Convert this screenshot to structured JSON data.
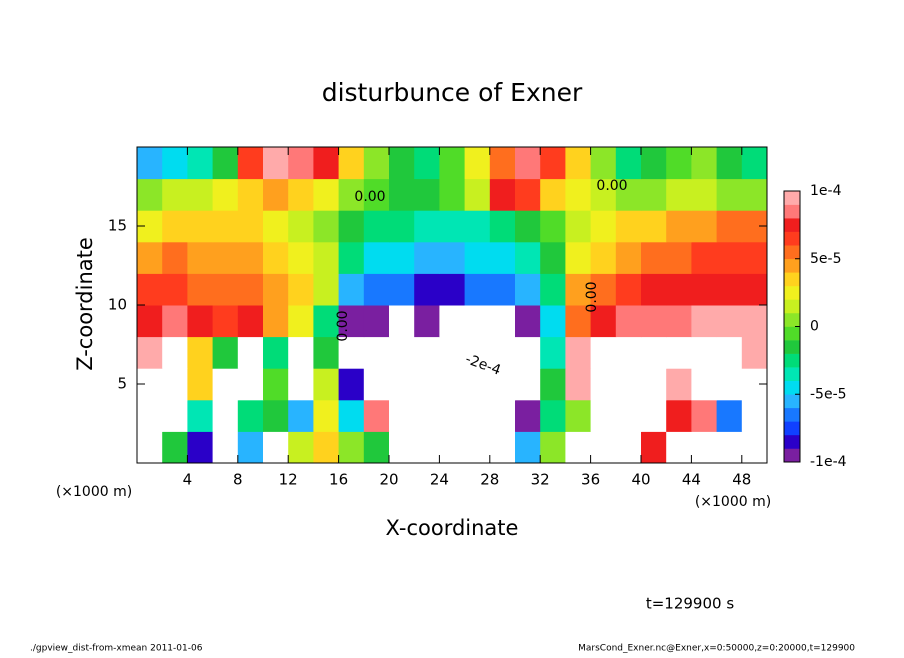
{
  "chart_data": {
    "type": "contourf",
    "title": "disturbunce of Exner",
    "xlabel": "X-coordinate",
    "ylabel": "Z-coordinate",
    "x_unit": "(×1000 m)",
    "y_unit": "(×1000 m)",
    "time_label": "t=129900 s",
    "footer_left": "./gpview_dist-from-xmean  2011-01-06",
    "footer_right": "MarsCond_Exner.nc@Exner,x=0:50000,z=0:20000,t=129900",
    "xlim": [
      0,
      50
    ],
    "ylim": [
      0,
      20
    ],
    "xticks": [
      4,
      8,
      12,
      16,
      20,
      24,
      28,
      32,
      36,
      40,
      44,
      48
    ],
    "yticks": [
      5,
      10,
      15
    ],
    "x": [
      1,
      3,
      5,
      7,
      9,
      11,
      13,
      15,
      17,
      19,
      21,
      23,
      25,
      27,
      29,
      31,
      33,
      35,
      37,
      39,
      41,
      43,
      45,
      47,
      49
    ],
    "y": [
      1,
      3,
      5,
      7,
      9,
      11,
      13,
      15,
      17,
      19
    ],
    "z": [
      [
        0.00012,
        -2e-05,
        -8e-05,
        0.00012,
        -6e-05,
        0.00012,
        1e-05,
        3e-05,
        0,
        -2e-05,
        -0.00015,
        -0.00015,
        -0.0002,
        -0.00015,
        -0.00012,
        -6e-05,
        0,
        0.00012,
        0.00012,
        0.00012,
        7e-05,
        0.00012,
        0.00012,
        0.00012,
        0.00012
      ],
      [
        0.00012,
        0.00012,
        -4e-05,
        0.00012,
        -3e-05,
        -2e-05,
        -6e-05,
        2e-05,
        -5e-05,
        8e-05,
        -0.0002,
        -0.0002,
        -0.00025,
        -0.00025,
        -0.0002,
        -0.0001,
        -3e-05,
        0,
        0.00012,
        0.00012,
        0.00012,
        7e-05,
        8e-05,
        -7e-05,
        0.00012
      ],
      [
        0.00012,
        0.00012,
        3e-05,
        0.00012,
        0.00012,
        -1e-05,
        0.00012,
        1e-05,
        -8e-05,
        -0.0002,
        -0.0002,
        -0.0002,
        -0.0002,
        -0.00025,
        -0.00025,
        -0.0002,
        -2e-05,
        0.0001,
        0.00012,
        0.00012,
        0.00012,
        9e-05,
        0.00012,
        0.00012,
        0.00012
      ],
      [
        9e-05,
        0.00012,
        3e-05,
        -2e-05,
        0.00012,
        -3e-05,
        0.00012,
        -2e-05,
        -0.00015,
        -0.00015,
        -0.0002,
        -0.0002,
        -0.0002,
        -0.0002,
        -0.00015,
        -0.00012,
        -4e-05,
        9e-05,
        0.00012,
        0.00012,
        0.00012,
        0.00012,
        0.00012,
        0.00012,
        9e-05
      ],
      [
        7e-05,
        8e-05,
        7e-05,
        6e-05,
        7e-05,
        4e-05,
        2e-05,
        -3e-05,
        -9e-05,
        -0.0001,
        -0.00015,
        -0.0001,
        -0.00015,
        -0.00015,
        -0.00012,
        -9e-05,
        -5e-05,
        5e-05,
        7e-05,
        8e-05,
        8e-05,
        8e-05,
        9e-05,
        9e-05,
        9e-05
      ],
      [
        6e-05,
        6e-05,
        5e-05,
        5e-05,
        5e-05,
        4e-05,
        3e-05,
        1e-05,
        -6e-05,
        -7e-05,
        -7e-05,
        -8e-05,
        -8e-05,
        -7e-05,
        -7e-05,
        -6e-05,
        -3e-05,
        4e-05,
        5e-05,
        6e-05,
        7e-05,
        7e-05,
        7e-05,
        7e-05,
        7e-05
      ],
      [
        4e-05,
        5e-05,
        4e-05,
        4e-05,
        4e-05,
        3e-05,
        2e-05,
        1e-05,
        -3e-05,
        -5e-05,
        -5e-05,
        -6e-05,
        -6e-05,
        -5e-05,
        -5e-05,
        -4e-05,
        -2e-05,
        2e-05,
        3e-05,
        4e-05,
        5e-05,
        5e-05,
        6e-05,
        6e-05,
        6e-05
      ],
      [
        2e-05,
        3e-05,
        3e-05,
        3e-05,
        3e-05,
        2e-05,
        1e-05,
        0,
        -2e-05,
        -3e-05,
        -3e-05,
        -4e-05,
        -4e-05,
        -4e-05,
        -3e-05,
        -2e-05,
        -1e-05,
        1e-05,
        2e-05,
        3e-05,
        3e-05,
        4e-05,
        4e-05,
        5e-05,
        5e-05
      ],
      [
        0,
        1e-05,
        1e-05,
        2e-05,
        3e-05,
        4e-05,
        3e-05,
        2e-05,
        0,
        -1e-05,
        -2e-05,
        -2e-05,
        -1e-05,
        1e-05,
        7e-05,
        6e-05,
        3e-05,
        2e-05,
        1e-05,
        0,
        0,
        1e-05,
        1e-05,
        0,
        0
      ],
      [
        -6e-05,
        -5e-05,
        -4e-05,
        -2e-05,
        6e-05,
        9e-05,
        8e-05,
        7e-05,
        3e-05,
        0,
        -2e-05,
        -3e-05,
        -1e-05,
        2e-05,
        5e-05,
        8e-05,
        6e-05,
        3e-05,
        0,
        -3e-05,
        -2e-05,
        -1e-05,
        0,
        -2e-05,
        -3e-05
      ]
    ],
    "clim": [
      -0.0001,
      0.0001
    ],
    "colors": [
      "#7a1fa0",
      "#2a00c8",
      "#1040ff",
      "#1878ff",
      "#28b4ff",
      "#00dcf0",
      "#00e6b4",
      "#00dc78",
      "#20c83c",
      "#50dc28",
      "#8ce628",
      "#c8f020",
      "#f0f01e",
      "#ffd21e",
      "#ffa01e",
      "#ff6e1e",
      "#ff3c1e",
      "#f01e1e",
      "#ff7878",
      "#ffaaaa"
    ],
    "cticks": [
      {
        "value": -0.0001,
        "label": "-1e-4"
      },
      {
        "value": -5e-05,
        "label": "-5e-5"
      },
      0,
      {
        "value": 5e-05,
        "label": "5e-5"
      },
      {
        "value": 0.0001,
        "label": "1e-4"
      }
    ],
    "contour_labels": [
      "0.00",
      "0.00",
      "0.00",
      "0.00",
      "-2e-4"
    ]
  }
}
